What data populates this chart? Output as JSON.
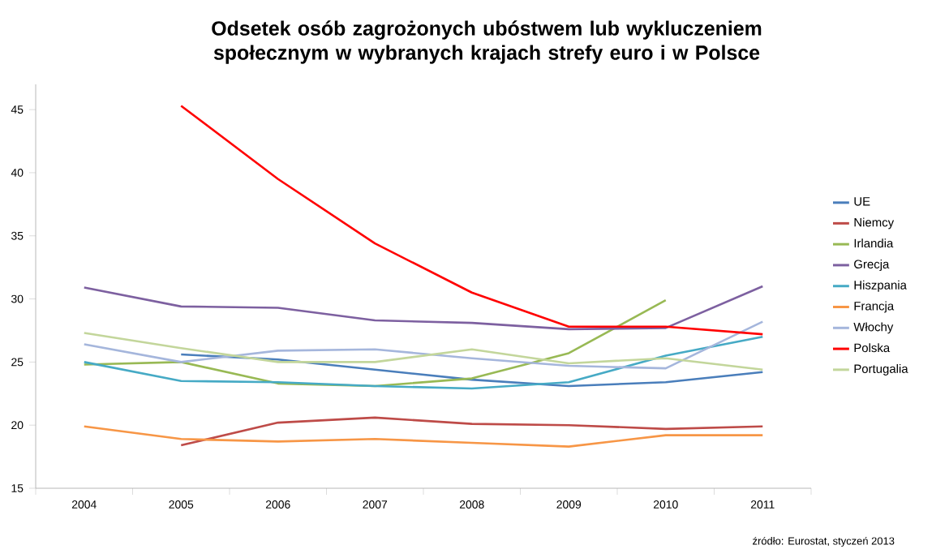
{
  "chart_data": {
    "type": "line",
    "title": "Odsetek osób zagrożonych ubóstwem lub wykluczeniem społecznym w wybranych krajach strefy euro i w Polsce",
    "categories": [
      "2004",
      "2005",
      "2006",
      "2007",
      "2008",
      "2009",
      "2010",
      "2011"
    ],
    "series": [
      {
        "name": "UE",
        "color": "#4a7ebb",
        "values": [
          null,
          25.6,
          25.2,
          24.4,
          23.6,
          23.1,
          23.4,
          24.2
        ]
      },
      {
        "name": "Niemcy",
        "color": "#be4b48",
        "values": [
          null,
          18.4,
          20.2,
          20.6,
          20.1,
          20.0,
          19.7,
          19.9
        ]
      },
      {
        "name": "Irlandia",
        "color": "#98b954",
        "values": [
          24.8,
          25.0,
          23.3,
          23.1,
          23.7,
          25.7,
          29.9,
          null
        ]
      },
      {
        "name": "Grecja",
        "color": "#7d60a0",
        "values": [
          30.9,
          29.4,
          29.3,
          28.3,
          28.1,
          27.6,
          27.7,
          31.0
        ]
      },
      {
        "name": "Hiszpania",
        "color": "#46aac5",
        "values": [
          25.0,
          23.5,
          23.4,
          23.1,
          22.9,
          23.4,
          25.5,
          27.0
        ]
      },
      {
        "name": "Francja",
        "color": "#f79646",
        "values": [
          19.9,
          18.9,
          18.7,
          18.9,
          18.6,
          18.3,
          19.2,
          19.2
        ]
      },
      {
        "name": "Włochy",
        "color": "#a5b6dc",
        "values": [
          26.4,
          25.0,
          25.9,
          26.0,
          25.3,
          24.7,
          24.5,
          28.2
        ]
      },
      {
        "name": "Polska",
        "color": "#ff0000",
        "values": [
          null,
          45.3,
          39.5,
          34.4,
          30.5,
          27.8,
          27.8,
          27.2
        ]
      },
      {
        "name": "Portugalia",
        "color": "#c3d69b",
        "values": [
          27.3,
          26.1,
          25.0,
          25.0,
          26.0,
          24.9,
          25.3,
          24.4
        ]
      }
    ],
    "ylim": [
      15,
      47
    ],
    "yticks": [
      15,
      20,
      25,
      30,
      35,
      40,
      45
    ],
    "legend": "right",
    "grid": false,
    "annotations": [
      "źródło: Eurostat, styczeń 2013"
    ]
  }
}
